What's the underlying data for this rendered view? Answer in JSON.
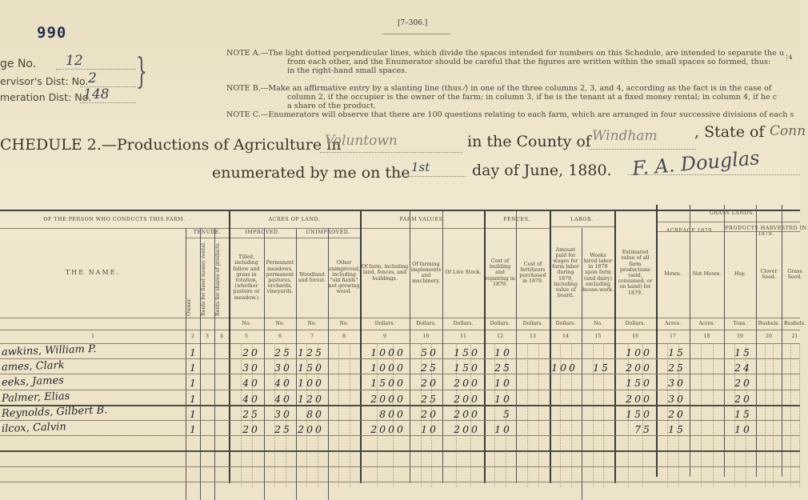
{
  "stamp_number": "990",
  "form_number": "[7–306.]",
  "districts": [
    {
      "label": "ge No.",
      "value": "12"
    },
    {
      "label": "ervisor's Dist: No.",
      "value": "2"
    },
    {
      "label": "meration Dist: No.",
      "value": "148"
    }
  ],
  "notes": [
    "NOTE A.—The light dotted perpendicular lines, which divide the spaces intended for numbers on this Schedule, are intended to separate the u",
    "from each other, and the Enumerator should be careful that the figures are written within the small spaces so formed, thus:",
    "in the right-hand small spaces.",
    "NOTE B.—Make an affirmative entry by a slanting line (thus ⁄) in one of the three columns 2, 3, and 4, according as the fact is in the case of",
    "column 2, if the occupier is the owner of the farm; in column 3, if he is the tenant at a fixed money rental; in column 4, if he c",
    "a share of the product.",
    "NOTE C.—Enumerators will observe that there are 100 questions relating to each farm, which are arranged in four successive divisions of each s"
  ],
  "note_example": "4",
  "schedule": {
    "title": "CHEDULE 2.—Productions of Agriculture in",
    "town": "Voluntown",
    "county_label": "in the County of",
    "county": "Windham",
    "state_label": ", State of",
    "state": "Conn",
    "enumerated_label": "enumerated by me on the",
    "day": "1st",
    "date_label": "day of June, 1880.",
    "enumerator": "F. A. Douglas"
  },
  "table": {
    "groups": [
      {
        "label": "OF THE PERSON WHO CONDUCTS THIS FARM."
      },
      {
        "label": "ACRES OF LAND."
      },
      {
        "label": "FARM VALUES."
      },
      {
        "label": "FENCES."
      },
      {
        "label": "LABOR."
      },
      {
        "label": "GRASS LANDS."
      }
    ],
    "subgroups": [
      {
        "label": "TENURE."
      },
      {
        "label": "IMPROVED."
      },
      {
        "label": "UNIMPROVED."
      },
      {
        "label": "ACREAGE 1879."
      },
      {
        "label": "PRODUCTS HARVESTED IN 1879."
      }
    ],
    "columns": [
      {
        "num": "1",
        "heading": "THE NAME.",
        "unit": ""
      },
      {
        "num": "2",
        "heading": "Owner.",
        "unit": ""
      },
      {
        "num": "3",
        "heading": "Rents for fixed money rental.",
        "unit": ""
      },
      {
        "num": "4",
        "heading": "Rents for shares of products.",
        "unit": ""
      },
      {
        "num": "5",
        "heading": "Tilled, including fallow and grass in rotation, (whether pasture or meadow.)",
        "unit": "No."
      },
      {
        "num": "6",
        "heading": "Permanent meadows, permanent pastures, orchards, vineyards.",
        "unit": "No."
      },
      {
        "num": "7",
        "heading": "Woodland and forest.",
        "unit": "No."
      },
      {
        "num": "8",
        "heading": "Other unimproved, including \"old fields\" not growing wood.",
        "unit": "No."
      },
      {
        "num": "9",
        "heading": "Of farm, including land, fences, and buildings.",
        "unit": "Dollars."
      },
      {
        "num": "10",
        "heading": "Of farming implements and machinery.",
        "unit": "Dollars."
      },
      {
        "num": "11",
        "heading": "Of Live Stock.",
        "unit": "Dollars."
      },
      {
        "num": "12",
        "heading": "Cost of building and repairing in 1879.",
        "unit": "Dollars."
      },
      {
        "num": "13",
        "heading": "Cost of fertilizers purchased in 1879.",
        "unit": "Dollars."
      },
      {
        "num": "14",
        "heading": "Amount paid for wages for farm labor during 1879, including value of board.",
        "unit": "Dollars."
      },
      {
        "num": "15",
        "heading": "Weeks hired labor in 1879 upon farm (and dairy) excluding house-work.",
        "unit": "No."
      },
      {
        "num": "16",
        "heading": "Estimated value of all farm productions (sold, consumed, or on hand) for 1879.",
        "unit": "Dollars."
      },
      {
        "num": "17",
        "heading": "Mown.",
        "unit": "Acres."
      },
      {
        "num": "18",
        "heading": "Not Mown.",
        "unit": "Acres."
      },
      {
        "num": "19",
        "heading": "Hay.",
        "unit": "Tons."
      },
      {
        "num": "20",
        "heading": "Clover Seed.",
        "unit": "Bushels."
      },
      {
        "num": "21",
        "heading": "Grass Seed.",
        "unit": "Bushels."
      }
    ],
    "rows": [
      [
        "awkins, William P.",
        "1",
        "",
        "",
        "20",
        "25",
        "125",
        "",
        "1000",
        "50",
        "150",
        "10",
        "",
        "",
        "",
        "100",
        "15",
        "",
        "15",
        "",
        ""
      ],
      [
        "ames, Clark",
        "1",
        "",
        "",
        "30",
        "30",
        "150",
        "",
        "1000",
        "25",
        "150",
        "25",
        "",
        "100",
        "15",
        "200",
        "25",
        "",
        "24",
        "",
        ""
      ],
      [
        "eeks, James",
        "1",
        "",
        "",
        "40",
        "40",
        "100",
        "",
        "1500",
        "20",
        "200",
        "10",
        "",
        "",
        "",
        "150",
        "30",
        "",
        "20",
        "",
        ""
      ],
      [
        "Palmer, Elias",
        "1",
        "",
        "",
        "40",
        "40",
        "120",
        "",
        "2000",
        "25",
        "200",
        "10",
        "",
        "",
        "",
        "200",
        "30",
        "",
        "20",
        "",
        ""
      ],
      [
        "Reynolds, Gilbert B.",
        "1",
        "",
        "",
        "25",
        "30",
        "80",
        "",
        "800",
        "20",
        "200",
        "5",
        "",
        "",
        "",
        "150",
        "20",
        "",
        "15",
        "",
        ""
      ],
      [
        "ilcox, Calvin",
        "1",
        "",
        "",
        "20",
        "25",
        "200",
        "",
        "2000",
        "10",
        "200",
        "10",
        "",
        "",
        "",
        "75",
        "15",
        "",
        "10",
        "",
        ""
      ]
    ]
  },
  "colors": {
    "paper": "#ece3c8",
    "ink": "#25252e",
    "stamp": "#25324f",
    "correction": "#c0392b"
  }
}
